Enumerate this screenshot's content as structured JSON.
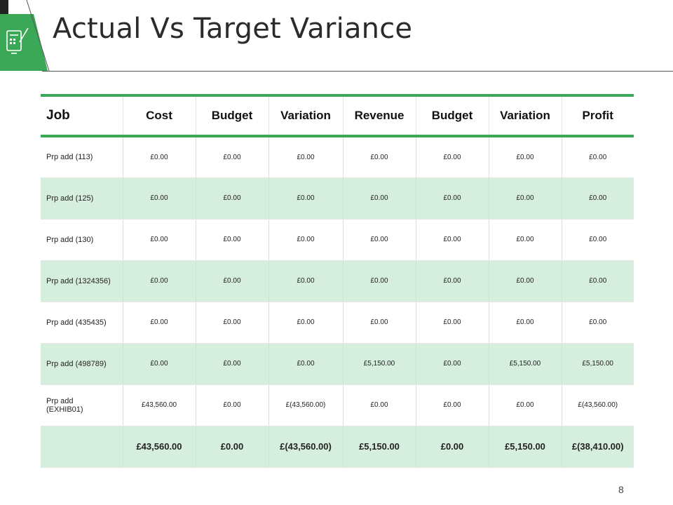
{
  "slide": {
    "title": "Actual Vs Target Variance",
    "page_number": "8",
    "accent_color": "#3aa857",
    "row_shade_color": "#d6eedd",
    "logo_icon": "calculator-tablet-icon"
  },
  "table": {
    "headers": [
      "Job",
      "Cost",
      "Budget",
      "Variation",
      "Revenue",
      "Budget",
      "Variation",
      "Profit"
    ],
    "rows": [
      {
        "job": "Prp add (113)",
        "cells": [
          "£0.00",
          "£0.00",
          "£0.00",
          "£0.00",
          "£0.00",
          "£0.00",
          "£0.00"
        ]
      },
      {
        "job": "Prp add (125)",
        "cells": [
          "£0.00",
          "£0.00",
          "£0.00",
          "£0.00",
          "£0.00",
          "£0.00",
          "£0.00"
        ]
      },
      {
        "job": "Prp add (130)",
        "cells": [
          "£0.00",
          "£0.00",
          "£0.00",
          "£0.00",
          "£0.00",
          "£0.00",
          "£0.00"
        ]
      },
      {
        "job": "Prp add (1324356)",
        "cells": [
          "£0.00",
          "£0.00",
          "£0.00",
          "£0.00",
          "£0.00",
          "£0.00",
          "£0.00"
        ]
      },
      {
        "job": "Prp add (435435)",
        "cells": [
          "£0.00",
          "£0.00",
          "£0.00",
          "£0.00",
          "£0.00",
          "£0.00",
          "£0.00"
        ]
      },
      {
        "job": "Prp add (498789)",
        "cells": [
          "£0.00",
          "£0.00",
          "£0.00",
          "£5,150.00",
          "£0.00",
          "£5,150.00",
          "£5,150.00"
        ]
      },
      {
        "job": "Prp add (EXHIB01)",
        "cells": [
          "£43,560.00",
          "£0.00",
          "£(43,560.00)",
          "£0.00",
          "£0.00",
          "£0.00",
          "£(43,560.00)"
        ]
      }
    ],
    "totals": {
      "job": "",
      "cells": [
        "£43,560.00",
        "£0.00",
        "£(43,560.00)",
        "£5,150.00",
        "£0.00",
        "£5,150.00",
        "£(38,410.00)"
      ]
    }
  }
}
